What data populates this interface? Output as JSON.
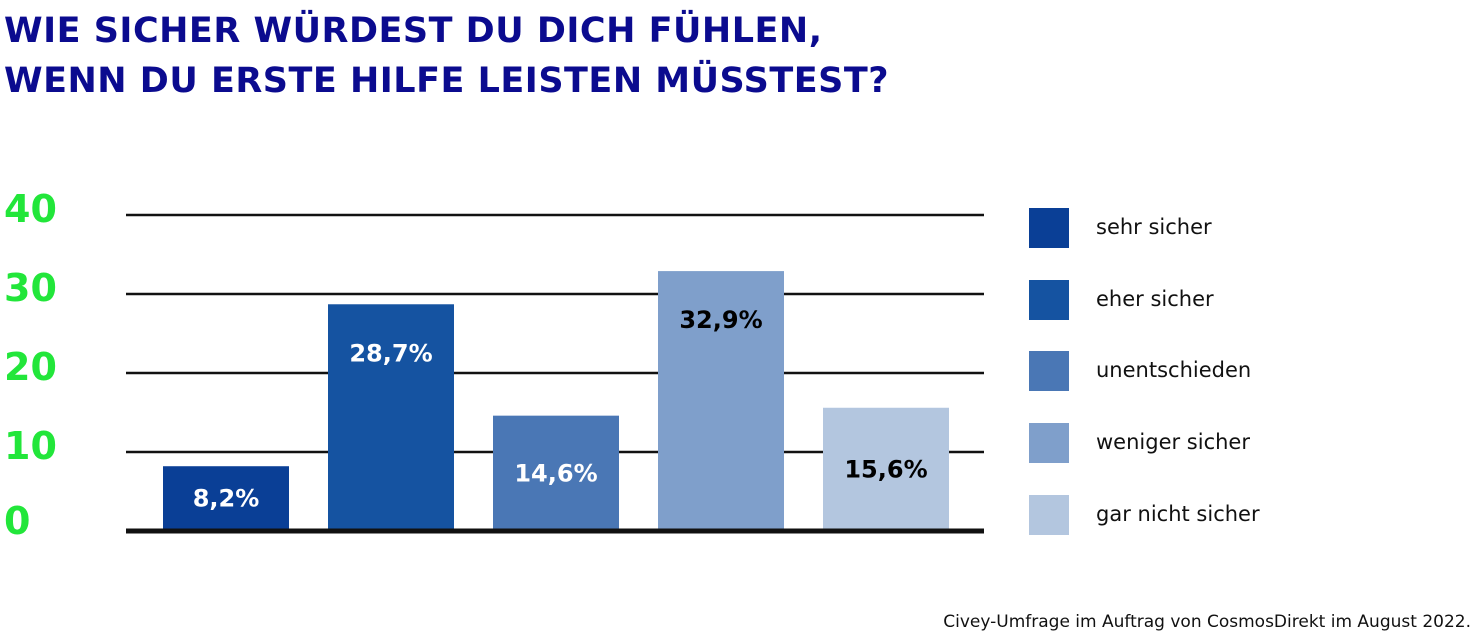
{
  "title": {
    "line1": "WIE SICHER WÜRDEST DU DICH FÜHLEN,",
    "line2": "WENN DU ERSTE HILFE LEISTEN MÜSSTEST?"
  },
  "source": "Civey-Umfrage im Auftrag von CosmosDirekt im August 2022.",
  "chart_data": {
    "type": "bar",
    "categories": [
      "sehr sicher",
      "eher sicher",
      "unentschieden",
      "weniger sicher",
      "gar nicht sicher"
    ],
    "values": [
      8.2,
      28.7,
      14.6,
      32.9,
      15.6
    ],
    "data_labels": [
      "8,2%",
      "28,7%",
      "14,6%",
      "32,9%",
      "15,6%"
    ],
    "colors": [
      "#0a3f96",
      "#1553a1",
      "#4a77b5",
      "#7f9fcb",
      "#b3c6df"
    ],
    "label_colors": [
      "#ffffff",
      "#ffffff",
      "#ffffff",
      "#000000",
      "#000000"
    ],
    "ylim": [
      0,
      40
    ],
    "yticks": [
      "0",
      "10",
      "20",
      "30",
      "40"
    ],
    "grid": true,
    "legend_position": "right",
    "tick_color": "#22e63a"
  }
}
